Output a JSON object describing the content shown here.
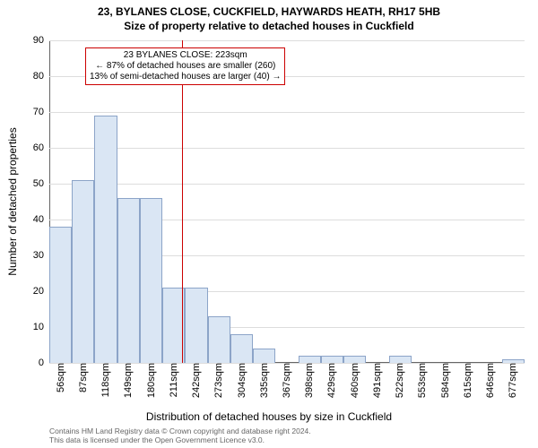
{
  "title_line1": "23, BYLANES CLOSE, CUCKFIELD, HAYWARDS HEATH, RH17 5HB",
  "title_line2": "Size of property relative to detached houses in Cuckfield",
  "y_axis_title": "Number of detached properties",
  "x_axis_title": "Distribution of detached houses by size in Cuckfield",
  "histogram": {
    "type": "histogram",
    "categories": [
      "56sqm",
      "87sqm",
      "118sqm",
      "149sqm",
      "180sqm",
      "211sqm",
      "242sqm",
      "273sqm",
      "304sqm",
      "335sqm",
      "367sqm",
      "398sqm",
      "429sqm",
      "460sqm",
      "491sqm",
      "522sqm",
      "553sqm",
      "584sqm",
      "615sqm",
      "646sqm",
      "677sqm"
    ],
    "values": [
      38,
      51,
      69,
      46,
      46,
      21,
      21,
      13,
      8,
      4,
      0,
      2,
      2,
      2,
      0,
      2,
      0,
      0,
      0,
      0,
      1
    ],
    "bar_fill": "#dae6f4",
    "bar_border": "#8ca4c8",
    "ylim": [
      0,
      90
    ],
    "ytick_step": 10,
    "grid_color": "#dddddd",
    "background_color": "#ffffff",
    "reference_line": {
      "x_value": 223,
      "x_min": 40.5,
      "x_max": 692.5,
      "color": "#cc0000"
    },
    "annotation": {
      "line1": "23 BYLANES CLOSE: 223sqm",
      "line2": "← 87% of detached houses are smaller (260)",
      "line3": "13% of semi-detached houses are larger (40) →",
      "border_color": "#cc0000",
      "text_color": "#000000",
      "bg": "#ffffff"
    }
  },
  "attribution": {
    "line1": "Contains HM Land Registry data © Crown copyright and database right 2024.",
    "line2": "This data is licensed under the Open Government Licence v3.0."
  }
}
